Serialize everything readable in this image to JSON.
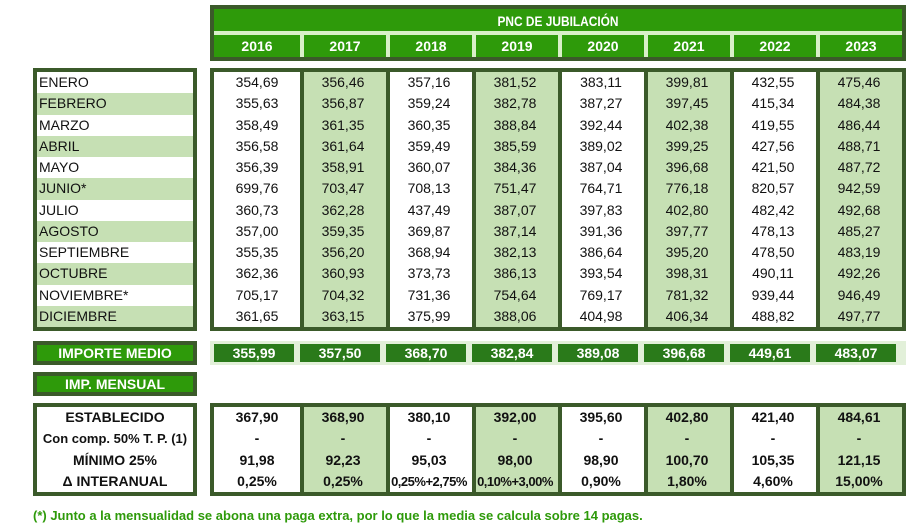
{
  "title": "PNC DE JUBILACIÓN",
  "years": [
    "2016",
    "2017",
    "2018",
    "2019",
    "2020",
    "2021",
    "2022",
    "2023"
  ],
  "months": [
    {
      "label": "ENERO",
      "values": [
        "354,69",
        "356,46",
        "357,16",
        "381,52",
        "383,11",
        "399,81",
        "432,55",
        "475,46"
      ]
    },
    {
      "label": "FEBRERO",
      "values": [
        "355,63",
        "356,87",
        "359,24",
        "382,78",
        "387,27",
        "397,45",
        "415,34",
        "484,38"
      ]
    },
    {
      "label": "MARZO",
      "values": [
        "358,49",
        "361,35",
        "360,35",
        "388,84",
        "392,44",
        "402,38",
        "419,55",
        "486,44"
      ]
    },
    {
      "label": "ABRIL",
      "values": [
        "356,58",
        "361,64",
        "359,49",
        "385,59",
        "389,02",
        "399,25",
        "427,56",
        "488,71"
      ]
    },
    {
      "label": "MAYO",
      "values": [
        "356,39",
        "358,91",
        "360,07",
        "384,36",
        "387,04",
        "396,68",
        "421,50",
        "487,72"
      ]
    },
    {
      "label": "JUNIO*",
      "values": [
        "699,76",
        "703,47",
        "708,13",
        "751,47",
        "764,71",
        "776,18",
        "820,57",
        "942,59"
      ]
    },
    {
      "label": "JULIO",
      "values": [
        "360,73",
        "362,28",
        "437,49",
        "387,07",
        "397,83",
        "402,80",
        "482,42",
        "492,68"
      ]
    },
    {
      "label": "AGOSTO",
      "values": [
        "357,00",
        "359,35",
        "369,87",
        "387,14",
        "391,36",
        "397,77",
        "478,13",
        "485,27"
      ]
    },
    {
      "label": "SEPTIEMBRE",
      "values": [
        "355,35",
        "356,20",
        "368,94",
        "382,13",
        "386,64",
        "395,20",
        "478,50",
        "483,19"
      ]
    },
    {
      "label": "OCTUBRE",
      "values": [
        "362,36",
        "360,93",
        "373,73",
        "386,13",
        "393,54",
        "398,31",
        "490,11",
        "492,26"
      ]
    },
    {
      "label": "NOVIEMBRE*",
      "values": [
        "705,17",
        "704,32",
        "731,36",
        "754,64",
        "769,17",
        "781,32",
        "939,44",
        "946,49"
      ]
    },
    {
      "label": "DICIEMBRE",
      "values": [
        "361,65",
        "363,15",
        "375,99",
        "388,06",
        "404,98",
        "406,34",
        "488,82",
        "497,77"
      ]
    }
  ],
  "importe_medio": {
    "label": "IMPORTE MEDIO",
    "values": [
      "355,99",
      "357,50",
      "368,70",
      "382,84",
      "389,08",
      "396,68",
      "449,61",
      "483,07"
    ]
  },
  "imp_mensual": {
    "label": "IMP. MENSUAL"
  },
  "mensual_rows": [
    {
      "label": "ESTABLECIDO",
      "values": [
        "367,90",
        "368,90",
        "380,10",
        "392,00",
        "395,60",
        "402,80",
        "421,40",
        "484,61"
      ]
    },
    {
      "label": "Con comp. 50% T. P. (1)",
      "values": [
        "-",
        "-",
        "-",
        "-",
        "-",
        "-",
        "-",
        "-"
      ]
    },
    {
      "label": "MÍNIMO 25%",
      "values": [
        "91,98",
        "92,23",
        "95,03",
        "98,00",
        "98,90",
        "100,70",
        "105,35",
        "121,15"
      ]
    },
    {
      "label": "Δ INTERANUAL",
      "values": [
        "0,25%",
        "0,25%",
        "0,25%+2,75%",
        "0,10%+3,00%",
        "0,90%",
        "1,80%",
        "4,60%",
        "15,00%"
      ]
    }
  ],
  "footnote": "(*) Junto a la mensualidad se abona una paga extra, por lo que la media se calcula sobre 14 pagas.",
  "colors": {
    "green": "#2e9a0a",
    "dark_border": "#3b5a2a",
    "light_green": "#c6e0b4",
    "medio_cell": "#2a7a1a"
  }
}
